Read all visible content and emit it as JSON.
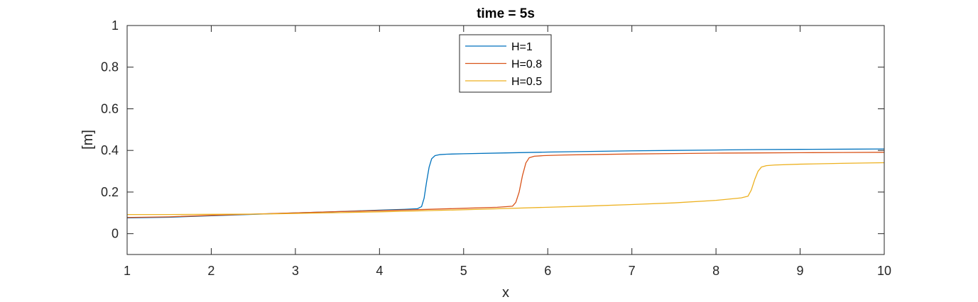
{
  "chart_data": {
    "type": "line",
    "title": "time = 5s",
    "xlabel": "x",
    "ylabel": "[m]",
    "xlim": [
      1,
      10
    ],
    "ylim": [
      -0.1,
      1
    ],
    "xticks": [
      1,
      2,
      3,
      4,
      5,
      6,
      7,
      8,
      9,
      10
    ],
    "yticks": [
      0,
      0.2,
      0.4,
      0.6,
      0.8,
      1
    ],
    "ytick_labels": [
      "0",
      "0.2",
      "0.4",
      "0.6",
      "0.8",
      "1"
    ],
    "grid": false,
    "legend_position": "top-center",
    "series": [
      {
        "name": "H=1",
        "color": "#0072BD",
        "x": [
          1,
          1.5,
          2,
          2.5,
          3,
          3.5,
          4,
          4.3,
          4.45,
          4.5,
          4.53,
          4.56,
          4.59,
          4.62,
          4.66,
          4.72,
          4.8,
          5,
          5.5,
          6,
          6.5,
          7,
          7.5,
          8,
          8.5,
          9,
          9.5,
          10
        ],
        "y": [
          0.076,
          0.079,
          0.086,
          0.093,
          0.1,
          0.106,
          0.113,
          0.117,
          0.12,
          0.13,
          0.17,
          0.25,
          0.32,
          0.36,
          0.375,
          0.38,
          0.382,
          0.384,
          0.388,
          0.392,
          0.395,
          0.398,
          0.4,
          0.402,
          0.404,
          0.405,
          0.406,
          0.407
        ]
      },
      {
        "name": "H=0.8",
        "color": "#D95319",
        "x": [
          1,
          1.5,
          2,
          2.5,
          3,
          3.5,
          4,
          4.5,
          5,
          5.4,
          5.58,
          5.62,
          5.66,
          5.7,
          5.74,
          5.78,
          5.84,
          5.95,
          6.2,
          6.5,
          7,
          7.5,
          8,
          8.5,
          9,
          9.5,
          10
        ],
        "y": [
          0.078,
          0.081,
          0.088,
          0.094,
          0.1,
          0.106,
          0.111,
          0.116,
          0.122,
          0.127,
          0.132,
          0.15,
          0.2,
          0.28,
          0.34,
          0.365,
          0.372,
          0.375,
          0.378,
          0.38,
          0.383,
          0.385,
          0.387,
          0.388,
          0.389,
          0.39,
          0.391
        ]
      },
      {
        "name": "H=0.5",
        "color": "#EDB120",
        "x": [
          1,
          1.5,
          2,
          2.5,
          3,
          3.5,
          4,
          4.5,
          5,
          5.5,
          6,
          6.5,
          7,
          7.5,
          8,
          8.3,
          8.38,
          8.42,
          8.46,
          8.5,
          8.54,
          8.6,
          8.7,
          9,
          9.5,
          10
        ],
        "y": [
          0.092,
          0.092,
          0.093,
          0.094,
          0.097,
          0.101,
          0.105,
          0.11,
          0.115,
          0.121,
          0.127,
          0.133,
          0.14,
          0.148,
          0.16,
          0.172,
          0.18,
          0.21,
          0.26,
          0.3,
          0.32,
          0.327,
          0.33,
          0.334,
          0.338,
          0.341
        ]
      }
    ]
  }
}
